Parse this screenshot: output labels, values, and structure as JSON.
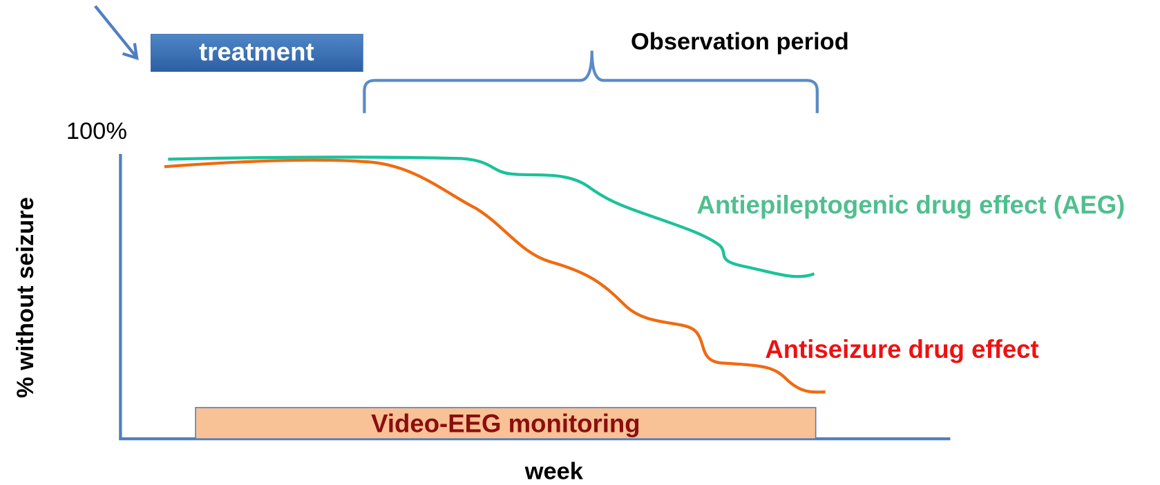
{
  "treatment_label": "treatment",
  "observation_label": "Observation period",
  "y_top_label": "100%",
  "y_axis_label": "% without seizure",
  "x_axis_label": "week",
  "curves": [
    {
      "label": "Antiepileptogenic drug effect (AEG)"
    },
    {
      "label": "Antiseizure drug effect"
    }
  ],
  "monitoring_label": "Video-EEG monitoring"
}
